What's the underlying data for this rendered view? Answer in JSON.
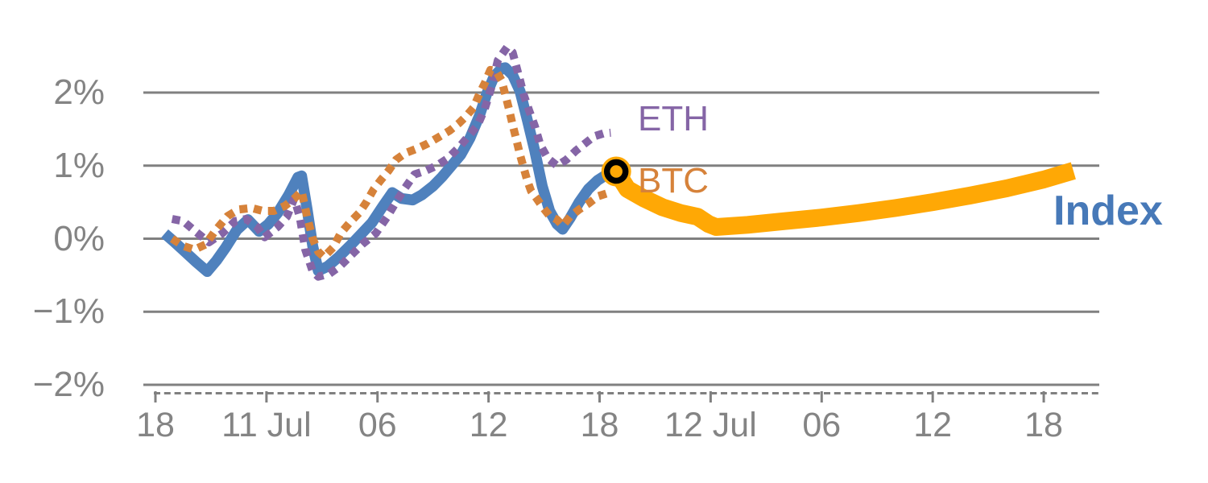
{
  "chart_data": {
    "type": "line",
    "title": "",
    "description_visible_text_only": "",
    "x_axis": {
      "unit": "time (6-hour major ticks)",
      "ticks": [
        {
          "label": "18",
          "hour": 0
        },
        {
          "label": "11 Jul",
          "hour": 6
        },
        {
          "label": "06",
          "hour": 12
        },
        {
          "label": "12",
          "hour": 18
        },
        {
          "label": "18",
          "hour": 24
        },
        {
          "label": "12 Jul",
          "hour": 30
        },
        {
          "label": "06",
          "hour": 36
        },
        {
          "label": "12",
          "hour": 42
        },
        {
          "label": "18",
          "hour": 48
        }
      ],
      "xlim_hours": [
        -0.7,
        51.0
      ],
      "minor_ticks": "dense dashes along axis line"
    },
    "y_axis": {
      "unit": "percent return",
      "ticks": [
        {
          "label": "2%",
          "value": 2
        },
        {
          "label": "1%",
          "value": 1
        },
        {
          "label": "0%",
          "value": 0
        },
        {
          "label": "−1%",
          "value": -1
        },
        {
          "label": "−2%",
          "value": -2
        }
      ],
      "ylim": [
        -2.15,
        2.75
      ],
      "grid": true
    },
    "series": [
      {
        "id": "eth",
        "label": "ETH",
        "color": "#8565A6",
        "style": "dotted",
        "points": [
          [
            0.9,
            0.27
          ],
          [
            1.5,
            0.24
          ],
          [
            2.2,
            0.09
          ],
          [
            2.9,
            -0.05
          ],
          [
            3.6,
            0.07
          ],
          [
            4.3,
            0.24
          ],
          [
            4.9,
            0.27
          ],
          [
            5.5,
            0.16
          ],
          [
            5.9,
            0.02
          ],
          [
            6.6,
            0.16
          ],
          [
            7.1,
            0.3
          ],
          [
            7.5,
            0.55
          ],
          [
            7.8,
            0.3
          ],
          [
            8.1,
            -0.15
          ],
          [
            8.5,
            -0.45
          ],
          [
            8.8,
            -0.52
          ],
          [
            9.4,
            -0.48
          ],
          [
            10.0,
            -0.37
          ],
          [
            10.6,
            -0.22
          ],
          [
            11.2,
            -0.07
          ],
          [
            11.9,
            0.07
          ],
          [
            12.5,
            0.29
          ],
          [
            13.0,
            0.5
          ],
          [
            13.5,
            0.7
          ],
          [
            14.0,
            0.88
          ],
          [
            14.6,
            0.93
          ],
          [
            15.2,
            1.0
          ],
          [
            15.8,
            1.1
          ],
          [
            16.4,
            1.25
          ],
          [
            16.9,
            1.4
          ],
          [
            17.4,
            1.55
          ],
          [
            17.8,
            1.78
          ],
          [
            18.2,
            2.11
          ],
          [
            18.5,
            2.44
          ],
          [
            18.8,
            2.55
          ],
          [
            19.0,
            2.62
          ],
          [
            19.3,
            2.55
          ],
          [
            19.7,
            2.17
          ],
          [
            19.9,
            1.97
          ],
          [
            20.2,
            1.75
          ],
          [
            20.5,
            1.54
          ],
          [
            20.8,
            1.28
          ],
          [
            21.2,
            1.1
          ],
          [
            21.7,
            1.0
          ],
          [
            22.2,
            1.08
          ],
          [
            22.7,
            1.2
          ],
          [
            23.2,
            1.3
          ],
          [
            23.7,
            1.4
          ],
          [
            24.2,
            1.44
          ],
          [
            24.6,
            1.45
          ]
        ]
      },
      {
        "id": "btc",
        "label": "BTC",
        "color": "#D6823A",
        "style": "dotted",
        "points": [
          [
            0.9,
            0.0
          ],
          [
            1.5,
            -0.1
          ],
          [
            2.1,
            -0.15
          ],
          [
            2.7,
            -0.08
          ],
          [
            3.3,
            0.13
          ],
          [
            3.9,
            0.31
          ],
          [
            4.5,
            0.4
          ],
          [
            5.2,
            0.42
          ],
          [
            5.8,
            0.38
          ],
          [
            6.4,
            0.38
          ],
          [
            7.0,
            0.45
          ],
          [
            7.5,
            0.55
          ],
          [
            7.9,
            0.65
          ],
          [
            8.2,
            0.3
          ],
          [
            8.5,
            0.0
          ],
          [
            8.8,
            -0.18
          ],
          [
            9.1,
            -0.25
          ],
          [
            9.6,
            -0.12
          ],
          [
            10.0,
            0.07
          ],
          [
            10.5,
            0.22
          ],
          [
            11.0,
            0.35
          ],
          [
            11.4,
            0.5
          ],
          [
            11.8,
            0.68
          ],
          [
            12.2,
            0.81
          ],
          [
            12.6,
            0.93
          ],
          [
            13.0,
            1.08
          ],
          [
            13.5,
            1.17
          ],
          [
            14.1,
            1.23
          ],
          [
            14.7,
            1.3
          ],
          [
            15.3,
            1.39
          ],
          [
            15.9,
            1.48
          ],
          [
            16.4,
            1.58
          ],
          [
            16.8,
            1.68
          ],
          [
            17.2,
            1.8
          ],
          [
            17.5,
            1.98
          ],
          [
            17.8,
            2.13
          ],
          [
            18.1,
            2.31
          ],
          [
            18.4,
            2.3
          ],
          [
            18.7,
            2.17
          ],
          [
            18.9,
            1.98
          ],
          [
            19.1,
            1.78
          ],
          [
            19.3,
            1.56
          ],
          [
            19.5,
            1.36
          ],
          [
            19.7,
            1.15
          ],
          [
            19.9,
            0.97
          ],
          [
            20.1,
            0.79
          ],
          [
            20.3,
            0.65
          ],
          [
            20.6,
            0.55
          ],
          [
            20.9,
            0.44
          ],
          [
            21.3,
            0.31
          ],
          [
            21.7,
            0.26
          ],
          [
            22.0,
            0.18
          ],
          [
            22.4,
            0.3
          ],
          [
            22.9,
            0.4
          ],
          [
            23.4,
            0.48
          ],
          [
            23.9,
            0.58
          ],
          [
            24.4,
            0.62
          ],
          [
            24.7,
            0.62
          ]
        ]
      },
      {
        "id": "index",
        "label": "Index",
        "color": "#4F81BD",
        "style": "solid",
        "points": [
          [
            0.5,
            0.07
          ],
          [
            1.0,
            -0.04
          ],
          [
            1.6,
            -0.18
          ],
          [
            2.2,
            -0.32
          ],
          [
            2.8,
            -0.45
          ],
          [
            3.3,
            -0.3
          ],
          [
            3.8,
            -0.12
          ],
          [
            4.4,
            0.12
          ],
          [
            5.0,
            0.26
          ],
          [
            5.6,
            0.1
          ],
          [
            6.1,
            0.2
          ],
          [
            6.6,
            0.35
          ],
          [
            7.2,
            0.6
          ],
          [
            7.7,
            0.84
          ],
          [
            7.9,
            0.86
          ],
          [
            8.2,
            0.4
          ],
          [
            8.5,
            -0.1
          ],
          [
            8.8,
            -0.44
          ],
          [
            9.3,
            -0.38
          ],
          [
            9.9,
            -0.25
          ],
          [
            10.5,
            -0.1
          ],
          [
            11.1,
            0.06
          ],
          [
            11.7,
            0.22
          ],
          [
            12.3,
            0.45
          ],
          [
            12.8,
            0.63
          ],
          [
            13.3,
            0.55
          ],
          [
            13.9,
            0.53
          ],
          [
            14.4,
            0.6
          ],
          [
            15.0,
            0.72
          ],
          [
            15.5,
            0.85
          ],
          [
            16.0,
            1.0
          ],
          [
            16.5,
            1.15
          ],
          [
            17.0,
            1.38
          ],
          [
            17.5,
            1.68
          ],
          [
            17.9,
            1.98
          ],
          [
            18.3,
            2.22
          ],
          [
            18.7,
            2.33
          ],
          [
            18.9,
            2.34
          ],
          [
            19.3,
            2.24
          ],
          [
            19.7,
            2.02
          ],
          [
            20.1,
            1.62
          ],
          [
            20.5,
            1.2
          ],
          [
            20.9,
            0.72
          ],
          [
            21.3,
            0.38
          ],
          [
            21.7,
            0.2
          ],
          [
            22.0,
            0.13
          ],
          [
            22.4,
            0.28
          ],
          [
            22.9,
            0.5
          ],
          [
            23.4,
            0.68
          ],
          [
            23.9,
            0.8
          ],
          [
            24.4,
            0.88
          ],
          [
            24.9,
            0.92
          ]
        ]
      },
      {
        "id": "index-continuation",
        "label": "",
        "color": "#FFA805",
        "style": "solid-thick",
        "points": [
          [
            24.9,
            0.92
          ],
          [
            25.5,
            0.68
          ],
          [
            26.4,
            0.55
          ],
          [
            27.4,
            0.43
          ],
          [
            28.4,
            0.35
          ],
          [
            29.3,
            0.3
          ],
          [
            29.9,
            0.2
          ],
          [
            30.3,
            0.16
          ],
          [
            32.0,
            0.19
          ],
          [
            34.0,
            0.24
          ],
          [
            36.0,
            0.29
          ],
          [
            38.0,
            0.35
          ],
          [
            40.0,
            0.42
          ],
          [
            42.0,
            0.5
          ],
          [
            44.0,
            0.59
          ],
          [
            46.0,
            0.69
          ],
          [
            48.0,
            0.81
          ],
          [
            49.6,
            0.93
          ]
        ]
      }
    ],
    "marker": {
      "shape": "ring-circle",
      "hour": 24.9,
      "value": 0.92,
      "fill": "#FFA805",
      "ring_color": "#000000"
    },
    "palette": {
      "gridline": "#808080",
      "axis_text": "#848484",
      "background": "#FFFFFF"
    },
    "legend_position": "inline labels at line ends"
  }
}
